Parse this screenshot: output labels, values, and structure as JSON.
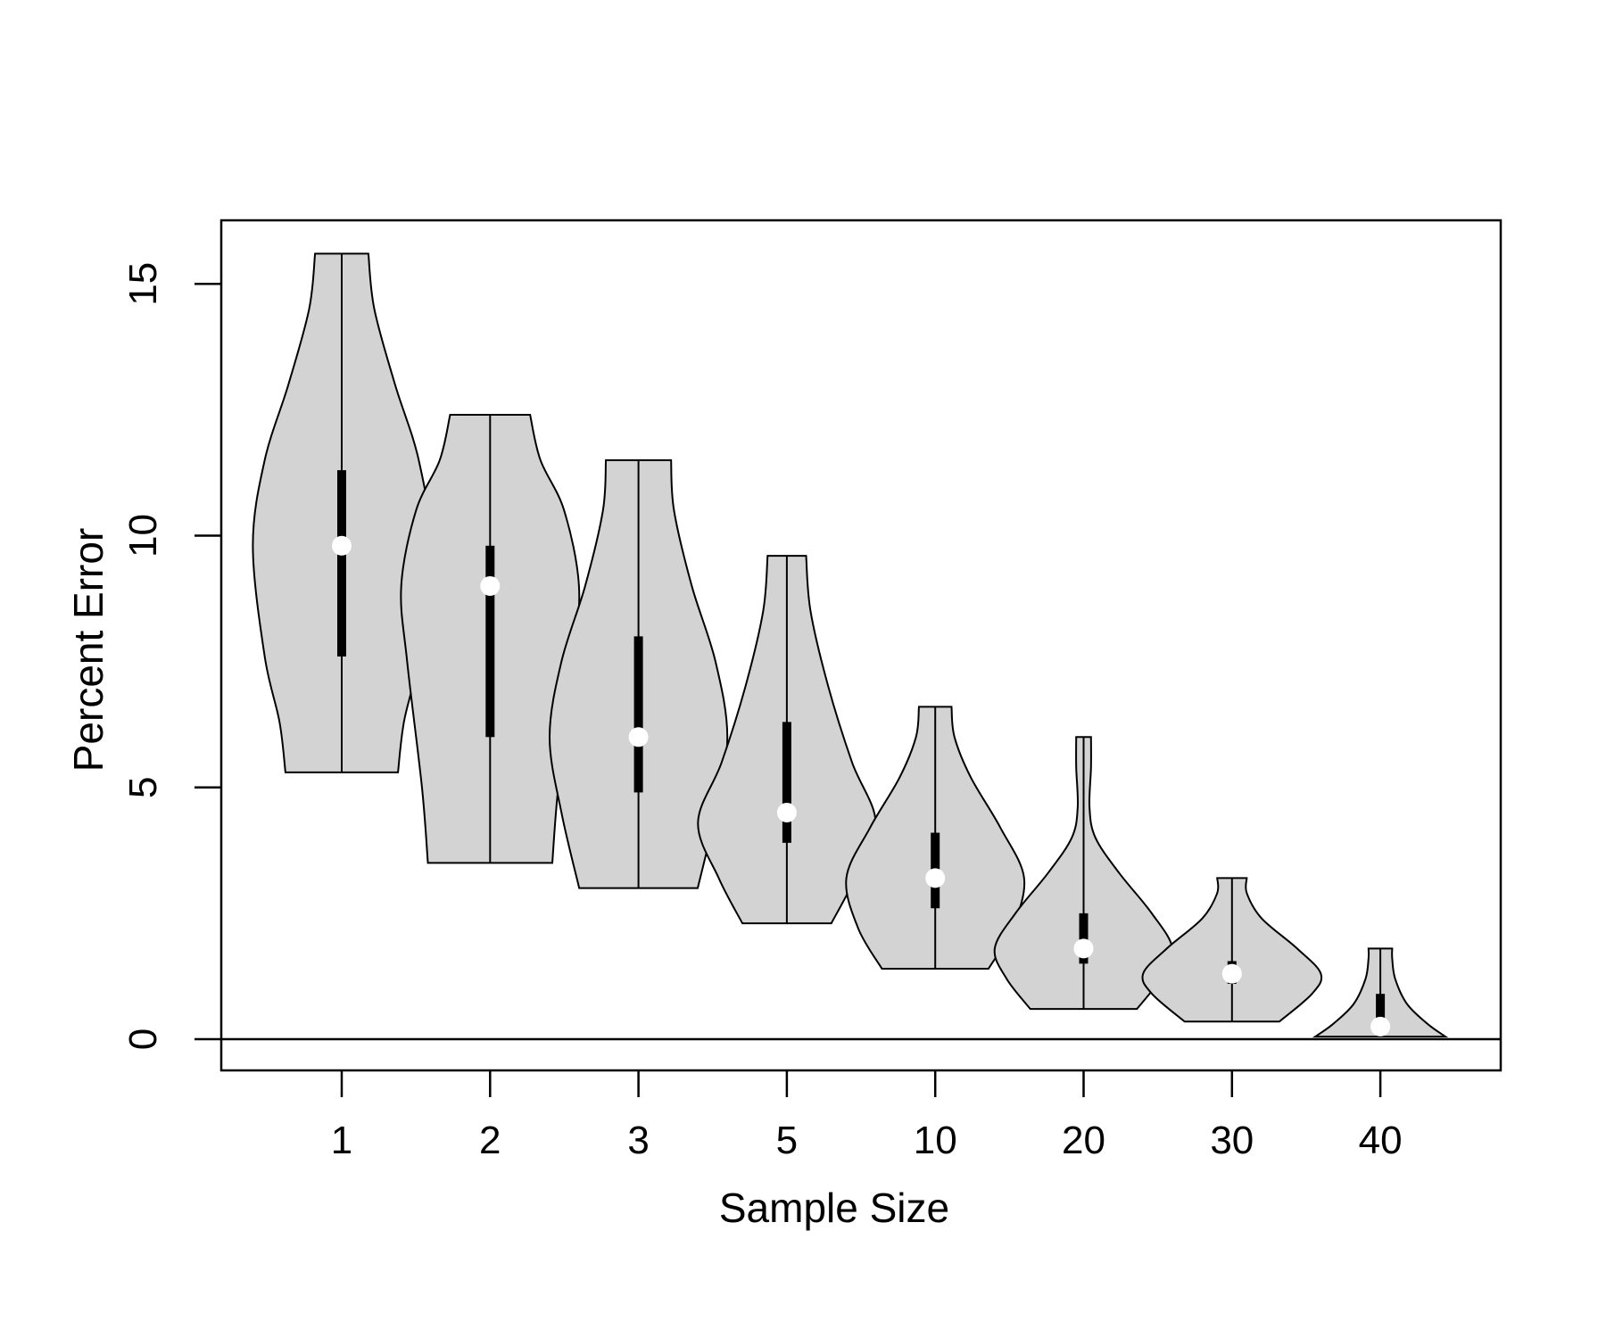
{
  "chart_data": {
    "type": "violin",
    "title": "",
    "xlabel": "Sample Size",
    "ylabel": "Percent Error",
    "ylim": [
      -1,
      16
    ],
    "y_ticks": [
      0,
      5,
      10,
      15
    ],
    "reference_line_y": 0,
    "grid": false,
    "legend": "none",
    "colors": {
      "violin_fill": "#d3d3d3",
      "outline": "#000000",
      "median_dot": "#ffffff"
    },
    "categories": [
      "1",
      "2",
      "3",
      "5",
      "10",
      "20",
      "30",
      "40"
    ],
    "violins": [
      {
        "category": "1",
        "min": 5.3,
        "q1": 7.6,
        "median": 9.8,
        "q3": 11.3,
        "max": 15.6,
        "density": [
          [
            5.3,
            0.38
          ],
          [
            6.3,
            0.42
          ],
          [
            7.6,
            0.52
          ],
          [
            9.8,
            0.6
          ],
          [
            11.5,
            0.52
          ],
          [
            13.0,
            0.36
          ],
          [
            14.5,
            0.22
          ],
          [
            15.6,
            0.18
          ]
        ]
      },
      {
        "category": "2",
        "min": 3.5,
        "q1": 6.0,
        "median": 9.0,
        "q3": 9.8,
        "max": 12.4,
        "density": [
          [
            3.5,
            0.42
          ],
          [
            5.0,
            0.46
          ],
          [
            7.5,
            0.56
          ],
          [
            9.0,
            0.6
          ],
          [
            10.5,
            0.5
          ],
          [
            11.5,
            0.34
          ],
          [
            12.4,
            0.27
          ]
        ]
      },
      {
        "category": "3",
        "min": 3.0,
        "q1": 4.9,
        "median": 6.0,
        "q3": 8.0,
        "max": 11.5,
        "density": [
          [
            3.0,
            0.4
          ],
          [
            4.5,
            0.52
          ],
          [
            6.0,
            0.6
          ],
          [
            7.5,
            0.52
          ],
          [
            9.0,
            0.36
          ],
          [
            10.5,
            0.24
          ],
          [
            11.5,
            0.22
          ]
        ]
      },
      {
        "category": "5",
        "min": 2.3,
        "q1": 3.9,
        "median": 4.5,
        "q3": 6.3,
        "max": 9.6,
        "density": [
          [
            2.3,
            0.3
          ],
          [
            3.2,
            0.46
          ],
          [
            4.3,
            0.6
          ],
          [
            5.5,
            0.44
          ],
          [
            7.0,
            0.28
          ],
          [
            8.5,
            0.16
          ],
          [
            9.6,
            0.13
          ]
        ]
      },
      {
        "category": "10",
        "min": 1.4,
        "q1": 2.6,
        "median": 3.2,
        "q3": 4.1,
        "max": 6.6,
        "density": [
          [
            1.4,
            0.36
          ],
          [
            2.2,
            0.52
          ],
          [
            3.2,
            0.6
          ],
          [
            4.2,
            0.44
          ],
          [
            5.2,
            0.24
          ],
          [
            6.0,
            0.13
          ],
          [
            6.6,
            0.11
          ]
        ]
      },
      {
        "category": "20",
        "min": 0.6,
        "q1": 1.5,
        "median": 1.8,
        "q3": 2.5,
        "max": 6.0,
        "density": [
          [
            0.6,
            0.36
          ],
          [
            1.2,
            0.52
          ],
          [
            1.8,
            0.6
          ],
          [
            2.5,
            0.46
          ],
          [
            3.3,
            0.24
          ],
          [
            4.0,
            0.08
          ],
          [
            4.6,
            0.04
          ],
          [
            5.4,
            0.05
          ],
          [
            6.0,
            0.05
          ]
        ]
      },
      {
        "category": "30",
        "min": 0.35,
        "q1": 1.1,
        "median": 1.3,
        "q3": 1.55,
        "max": 3.2,
        "density": [
          [
            0.35,
            0.32
          ],
          [
            0.9,
            0.54
          ],
          [
            1.3,
            0.6
          ],
          [
            1.8,
            0.44
          ],
          [
            2.4,
            0.2
          ],
          [
            2.9,
            0.1
          ],
          [
            3.2,
            0.1
          ]
        ]
      },
      {
        "category": "40",
        "min": 0.05,
        "q1": 0.1,
        "median": 0.25,
        "q3": 0.9,
        "max": 1.8,
        "density": [
          [
            0.05,
            0.44
          ],
          [
            0.3,
            0.32
          ],
          [
            0.7,
            0.18
          ],
          [
            1.2,
            0.1
          ],
          [
            1.6,
            0.08
          ],
          [
            1.8,
            0.08
          ]
        ]
      }
    ]
  }
}
